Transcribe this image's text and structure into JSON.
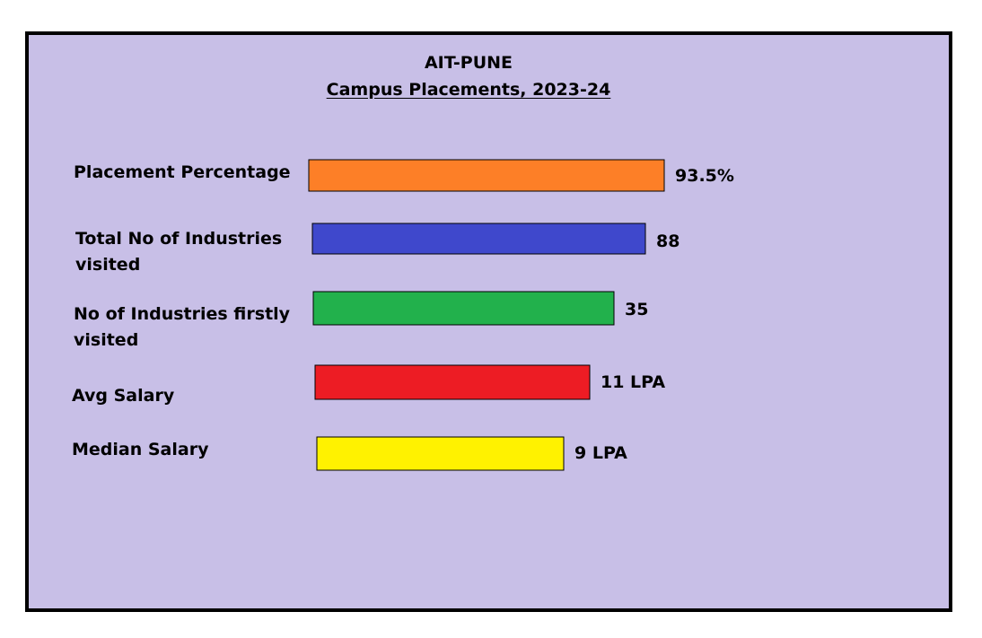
{
  "chart_data": {
    "type": "bar",
    "orientation": "horizontal",
    "title": "AIT-PUNE",
    "subtitle": "Campus Placements, 2023-24",
    "categories": [
      "Placement Percentage",
      "Total No of Industries visited",
      "No of Industries firstly visited",
      "Avg Salary",
      "Median Salary"
    ],
    "category_lines": [
      [
        "Placement Percentage"
      ],
      [
        "Total No of Industries",
        "visited"
      ],
      [
        "No of Industries firstly",
        "visited"
      ],
      [
        "Avg Salary"
      ],
      [
        "Median Salary"
      ]
    ],
    "values": [
      93.5,
      88,
      35,
      11,
      9
    ],
    "value_labels": [
      "93.5%",
      "88",
      "35",
      "11 LPA",
      "9 LPA"
    ],
    "colors": [
      "#fd7f27",
      "#3f48cc",
      "#22b14c",
      "#ed1c24",
      "#fff200"
    ],
    "background": "#c8bfe7",
    "grid": false,
    "legend": "none",
    "xlabel": "",
    "ylabel": ""
  }
}
